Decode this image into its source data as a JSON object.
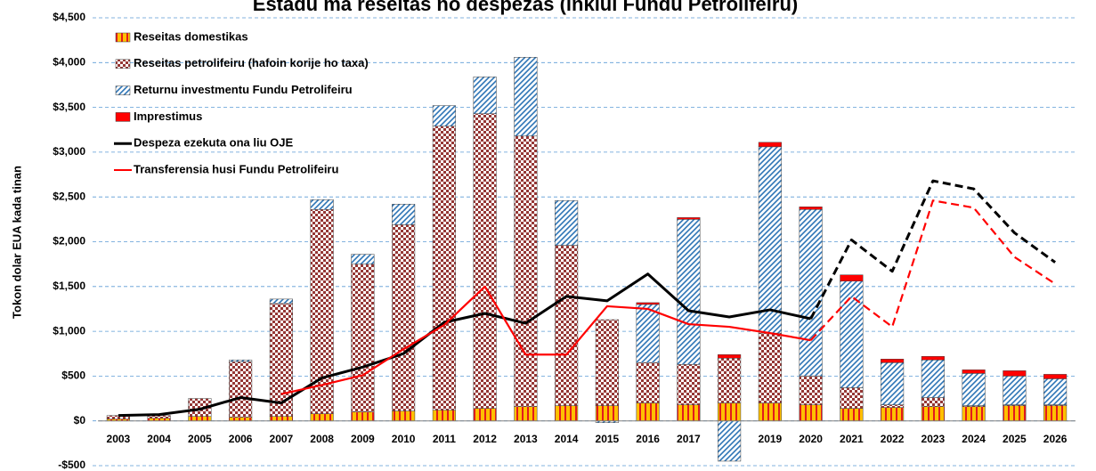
{
  "chart_data": {
    "type": "bar",
    "title": "Estadu ma reseitas no despezas (inklui Fundu Petrolifeiru)",
    "y_label": "Tokon dolar EUA kada tinan",
    "categories": [
      "2003",
      "2004",
      "2005",
      "2006",
      "2007",
      "2008",
      "2009",
      "2010",
      "2011",
      "2012",
      "2013",
      "2014",
      "2015",
      "2016",
      "2017",
      "2018",
      "2019",
      "2020",
      "2021",
      "2022",
      "2023",
      "2024",
      "2025",
      "2026"
    ],
    "series": [
      {
        "name": "Reseitas domestikas",
        "type": "bar",
        "pattern": "vertical-stripes",
        "color": "#ffc000",
        "color2": "#e31a1c",
        "values": [
          20,
          30,
          50,
          40,
          50,
          80,
          100,
          110,
          120,
          140,
          160,
          170,
          170,
          200,
          180,
          200,
          200,
          180,
          140,
          150,
          160,
          160,
          170,
          170
        ]
      },
      {
        "name": "Reseitas petrolifeiru (hafoin korije ho taxa)",
        "type": "bar",
        "pattern": "checker",
        "color": "#953735",
        "color2": "#ffffff",
        "values": [
          40,
          30,
          200,
          620,
          1260,
          2280,
          1650,
          2080,
          3170,
          3290,
          3020,
          1790,
          960,
          450,
          450,
          500,
          780,
          320,
          230,
          30,
          100,
          10,
          10,
          10
        ]
      },
      {
        "name": "Returnu investmentu Fundu Petrolifeiru",
        "type": "bar",
        "pattern": "diagonal",
        "color": "#2e75b6",
        "color2": "#ffffff",
        "values": [
          0,
          0,
          0,
          20,
          50,
          110,
          110,
          230,
          230,
          410,
          880,
          500,
          -20,
          650,
          1620,
          -450,
          2080,
          1860,
          1190,
          470,
          420,
          360,
          320,
          290
        ]
      },
      {
        "name": "Imprestimus",
        "type": "bar",
        "pattern": "solid",
        "color": "#ff0000",
        "values": [
          0,
          0,
          0,
          0,
          0,
          0,
          0,
          0,
          0,
          0,
          0,
          0,
          0,
          20,
          20,
          40,
          50,
          30,
          70,
          40,
          40,
          40,
          60,
          50
        ]
      },
      {
        "name": "Despeza ezekuta ona liu OJE",
        "type": "line",
        "color": "#000000",
        "values": [
          60,
          70,
          130,
          260,
          200,
          480,
          600,
          750,
          1100,
          1200,
          1090,
          1390,
          1340,
          1640,
          1230,
          1160,
          1240,
          1140,
          2020,
          1670,
          2680,
          2590,
          2100,
          1770
        ]
      },
      {
        "name": "Transferensia husi Fundu Petrolifeiru",
        "type": "line",
        "color": "#ff0000",
        "values": [
          null,
          null,
          null,
          null,
          300,
          400,
          510,
          800,
          1070,
          1500,
          740,
          740,
          1280,
          1250,
          1080,
          1050,
          980,
          900,
          1390,
          1050,
          2460,
          2380,
          1830,
          1530
        ]
      }
    ],
    "dashed_from": "2020",
    "ylim": [
      -500,
      4500
    ],
    "yticks": [
      {
        "value": -500,
        "label": "-$500"
      },
      {
        "value": 0,
        "label": "$0"
      },
      {
        "value": 500,
        "label": "$500"
      },
      {
        "value": 1000,
        "label": "$1,000"
      },
      {
        "value": 1500,
        "label": "$1,500"
      },
      {
        "value": 2000,
        "label": "$2,000"
      },
      {
        "value": 2500,
        "label": "$2,500"
      },
      {
        "value": 3000,
        "label": "$3,000"
      },
      {
        "value": 3500,
        "label": "$3,500"
      },
      {
        "value": 4000,
        "label": "$4,000"
      },
      {
        "value": 4500,
        "label": "$4,500"
      }
    ],
    "grid": true,
    "legend": "upper left"
  }
}
